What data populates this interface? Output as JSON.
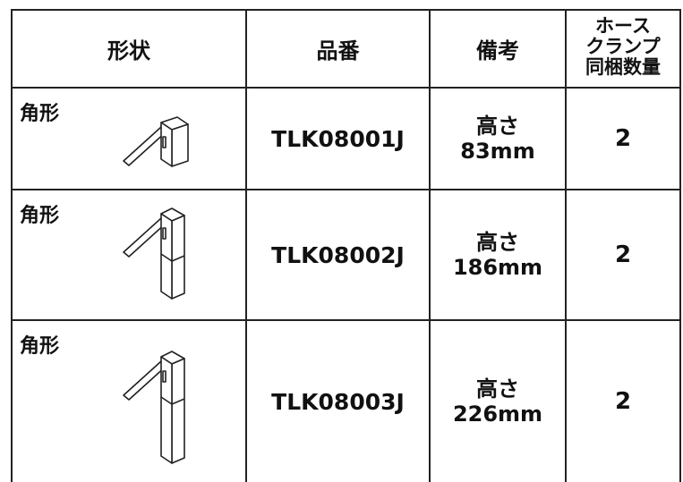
{
  "table": {
    "header": [
      "形状",
      "品番",
      "備考",
      [
        "ホース",
        "クランプ",
        "同梱数量"
      ]
    ],
    "rows": [
      [
        "角形",
        "TLK08001J",
        [
          "高さ",
          "83mm"
        ],
        2
      ],
      [
        "角形",
        "TLK08002J",
        [
          "高さ",
          "186mm"
        ],
        2
      ],
      [
        "角形",
        "TLK08003J",
        [
          "高さ",
          "226mm"
        ],
        2
      ]
    ]
  }
}
